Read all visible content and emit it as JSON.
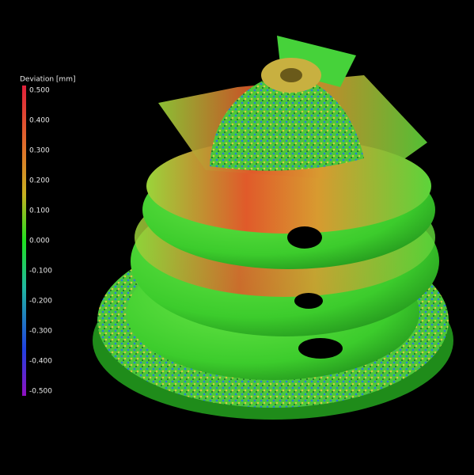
{
  "legend": {
    "title": "Deviation [mm]",
    "ticks": [
      "0.500",
      "0.400",
      "0.300",
      "0.200",
      "0.100",
      "0.000",
      "-0.100",
      "-0.200",
      "-0.300",
      "-0.400",
      "-0.500"
    ]
  }
}
